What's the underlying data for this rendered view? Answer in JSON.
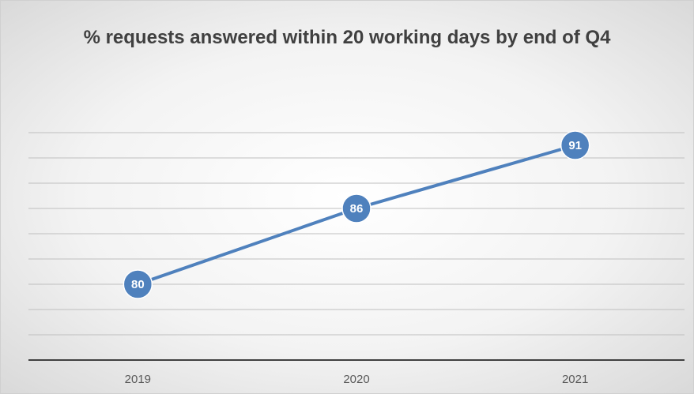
{
  "chart_data": {
    "type": "line",
    "title": "% requests answered within 20 working days by end of Q4",
    "categories": [
      "2019",
      "2020",
      "2021"
    ],
    "values": [
      80,
      86,
      91
    ],
    "color": "#4f81bd",
    "ylim": [
      74,
      92
    ],
    "yticks": [
      74,
      76,
      78,
      80,
      82,
      84,
      86,
      88,
      90,
      92
    ],
    "grid": true
  }
}
